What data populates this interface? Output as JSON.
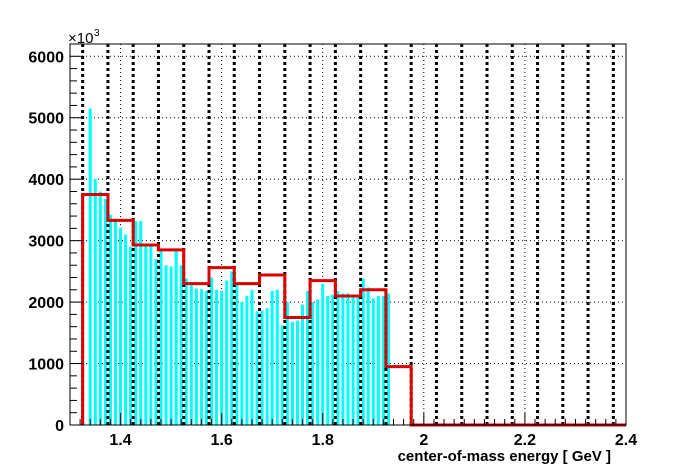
{
  "chart_data": {
    "type": "bar",
    "xlabel": "center-of-mass energy [ GeV ]",
    "ylabel": "",
    "y_multiplier_base": "×10",
    "y_multiplier_exponent": "3",
    "xlim": [
      1.3,
      2.4
    ],
    "ylim": [
      0,
      6200
    ],
    "x_ticks": [
      1.4,
      1.6,
      1.8,
      2.0,
      2.2,
      2.4
    ],
    "x_tick_labels": [
      "1.4",
      "1.6",
      "1.8",
      "2",
      "2.2",
      "2.4"
    ],
    "y_ticks": [
      0,
      1000,
      2000,
      3000,
      4000,
      5000,
      6000
    ],
    "y_tick_labels": [
      "0",
      "1000",
      "2000",
      "3000",
      "4000",
      "5000",
      "6000"
    ],
    "grid": true,
    "series": [
      {
        "kind": "fine-histogram",
        "color": "#00ffff",
        "bin_width": 0.01,
        "bins": [
          [
            1.34,
            5150
          ],
          [
            1.35,
            4000
          ],
          [
            1.36,
            3800
          ],
          [
            1.37,
            3680
          ],
          [
            1.38,
            3420
          ],
          [
            1.39,
            3330
          ],
          [
            1.4,
            3210
          ],
          [
            1.41,
            3100
          ],
          [
            1.42,
            2900
          ],
          [
            1.43,
            3320
          ],
          [
            1.44,
            3320
          ],
          [
            1.45,
            2950
          ],
          [
            1.46,
            2950
          ],
          [
            1.47,
            2700
          ],
          [
            1.48,
            2840
          ],
          [
            1.49,
            2600
          ],
          [
            1.5,
            2580
          ],
          [
            1.51,
            2840
          ],
          [
            1.52,
            2600
          ],
          [
            1.53,
            2380
          ],
          [
            1.54,
            2320
          ],
          [
            1.55,
            2220
          ],
          [
            1.56,
            2210
          ],
          [
            1.57,
            2180
          ],
          [
            1.58,
            2400
          ],
          [
            1.59,
            2200
          ],
          [
            1.6,
            2180
          ],
          [
            1.61,
            2350
          ],
          [
            1.62,
            2500
          ],
          [
            1.63,
            2300
          ],
          [
            1.64,
            2000
          ],
          [
            1.65,
            2100
          ],
          [
            1.66,
            2200
          ],
          [
            1.67,
            1850
          ],
          [
            1.68,
            1860
          ],
          [
            1.69,
            1900
          ],
          [
            1.7,
            2180
          ],
          [
            1.71,
            2200
          ],
          [
            1.72,
            1620
          ],
          [
            1.73,
            2000
          ],
          [
            1.74,
            1680
          ],
          [
            1.75,
            1700
          ],
          [
            1.76,
            1960
          ],
          [
            1.77,
            2180
          ],
          [
            1.78,
            2000
          ],
          [
            1.79,
            2040
          ],
          [
            1.8,
            2300
          ],
          [
            1.81,
            2100
          ],
          [
            1.82,
            2120
          ],
          [
            1.83,
            2180
          ],
          [
            1.84,
            2140
          ],
          [
            1.85,
            2140
          ],
          [
            1.86,
            2100
          ],
          [
            1.87,
            2100
          ],
          [
            1.88,
            2380
          ],
          [
            1.89,
            2240
          ],
          [
            1.9,
            2060
          ],
          [
            1.91,
            2100
          ],
          [
            1.92,
            2100
          ],
          [
            1.93,
            2140
          ]
        ]
      },
      {
        "kind": "step-histogram",
        "color": "#dd0000",
        "bins": [
          [
            1.325,
            1.375,
            3750
          ],
          [
            1.375,
            1.425,
            3330
          ],
          [
            1.425,
            1.475,
            2930
          ],
          [
            1.475,
            1.525,
            2850
          ],
          [
            1.525,
            1.575,
            2300
          ],
          [
            1.575,
            1.625,
            2560
          ],
          [
            1.625,
            1.675,
            2300
          ],
          [
            1.675,
            1.725,
            2440
          ],
          [
            1.725,
            1.775,
            1750
          ],
          [
            1.775,
            1.825,
            2350
          ],
          [
            1.825,
            1.875,
            2100
          ],
          [
            1.875,
            1.925,
            2200
          ],
          [
            1.925,
            1.975,
            950
          ],
          [
            1.975,
            2.4,
            0
          ]
        ]
      }
    ],
    "vertical_dashed_lines": [
      1.325,
      1.375,
      1.425,
      1.475,
      1.525,
      1.575,
      1.625,
      1.675,
      1.725,
      1.775,
      1.825,
      1.875,
      1.925,
      1.975,
      2.025,
      2.075,
      2.125,
      2.175,
      2.225,
      2.275,
      2.325,
      2.375
    ]
  }
}
